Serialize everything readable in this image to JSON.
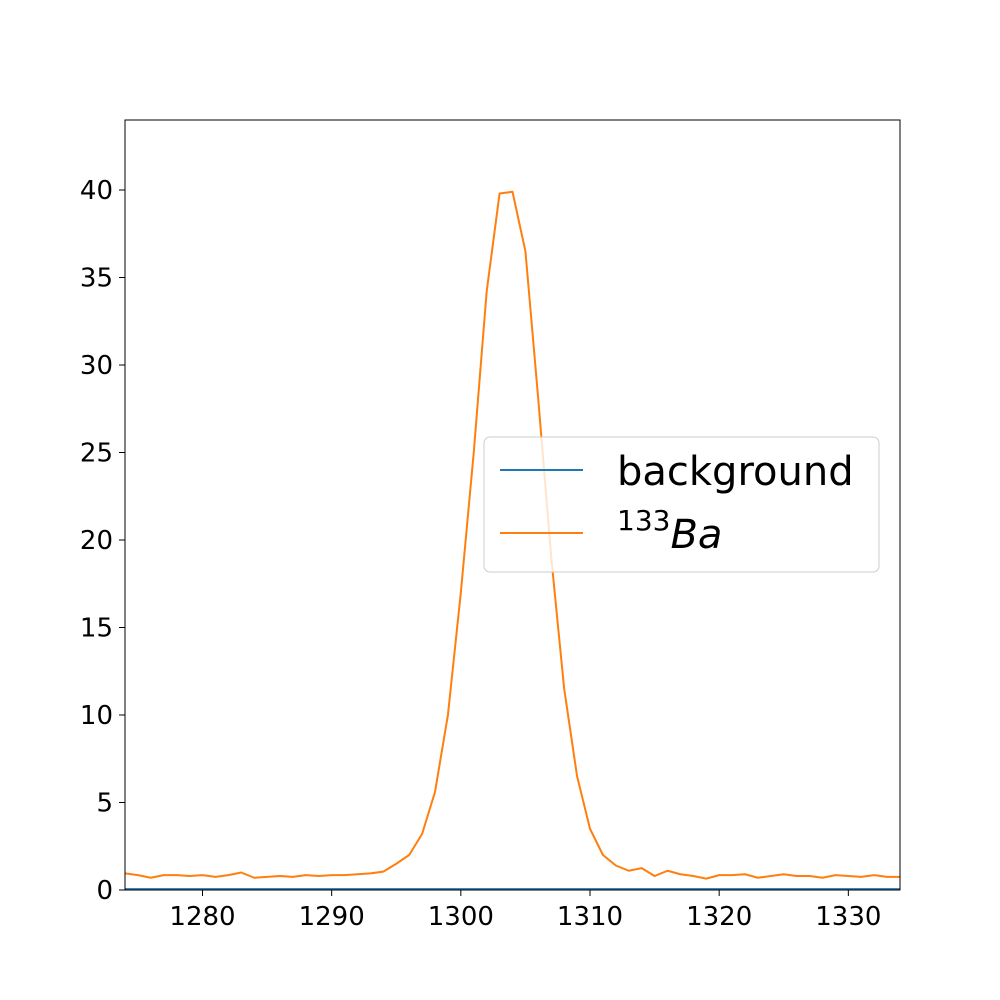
{
  "chart_data": {
    "type": "line",
    "xlim": [
      1274,
      1334
    ],
    "ylim": [
      0,
      44
    ],
    "xticks": [
      1280,
      1290,
      1300,
      1310,
      1320,
      1330
    ],
    "yticks": [
      0,
      5,
      10,
      15,
      20,
      25,
      30,
      35,
      40
    ],
    "grid": false,
    "legend_position": "center-right",
    "x": [
      1274,
      1275,
      1276,
      1277,
      1278,
      1279,
      1280,
      1281,
      1282,
      1283,
      1284,
      1285,
      1286,
      1287,
      1288,
      1289,
      1290,
      1291,
      1292,
      1293,
      1294,
      1295,
      1296,
      1297,
      1298,
      1299,
      1300,
      1301,
      1302,
      1303,
      1304,
      1305,
      1306,
      1307,
      1308,
      1309,
      1310,
      1311,
      1312,
      1313,
      1314,
      1315,
      1316,
      1317,
      1318,
      1319,
      1320,
      1321,
      1322,
      1323,
      1324,
      1325,
      1326,
      1327,
      1328,
      1329,
      1330,
      1331,
      1332,
      1333,
      1334
    ],
    "series": [
      {
        "name": "background",
        "color": "#1f77b4",
        "values": [
          0.05,
          0.05,
          0.05,
          0.05,
          0.05,
          0.05,
          0.05,
          0.05,
          0.05,
          0.05,
          0.05,
          0.05,
          0.05,
          0.05,
          0.05,
          0.05,
          0.05,
          0.05,
          0.05,
          0.05,
          0.05,
          0.05,
          0.05,
          0.05,
          0.05,
          0.05,
          0.05,
          0.05,
          0.05,
          0.05,
          0.05,
          0.05,
          0.05,
          0.05,
          0.05,
          0.05,
          0.05,
          0.05,
          0.05,
          0.05,
          0.05,
          0.05,
          0.05,
          0.05,
          0.05,
          0.05,
          0.05,
          0.05,
          0.05,
          0.05,
          0.05,
          0.05,
          0.05,
          0.05,
          0.05,
          0.05,
          0.05,
          0.05,
          0.05,
          0.05,
          0.05
        ]
      },
      {
        "name_sup": "133",
        "name_main": "Ba",
        "color": "#ff7f0e",
        "values": [
          0.95,
          0.85,
          0.7,
          0.85,
          0.85,
          0.8,
          0.85,
          0.75,
          0.85,
          1.0,
          0.7,
          0.75,
          0.8,
          0.75,
          0.85,
          0.8,
          0.85,
          0.85,
          0.9,
          0.95,
          1.05,
          1.5,
          2.0,
          3.2,
          5.6,
          10.0,
          17.0,
          25.0,
          34.2,
          39.8,
          39.9,
          36.5,
          28.0,
          19.0,
          11.5,
          6.5,
          3.5,
          2.0,
          1.4,
          1.1,
          1.25,
          0.8,
          1.1,
          0.9,
          0.8,
          0.65,
          0.85,
          0.85,
          0.9,
          0.7,
          0.8,
          0.9,
          0.8,
          0.8,
          0.7,
          0.85,
          0.8,
          0.75,
          0.85,
          0.75,
          0.75
        ]
      }
    ]
  }
}
